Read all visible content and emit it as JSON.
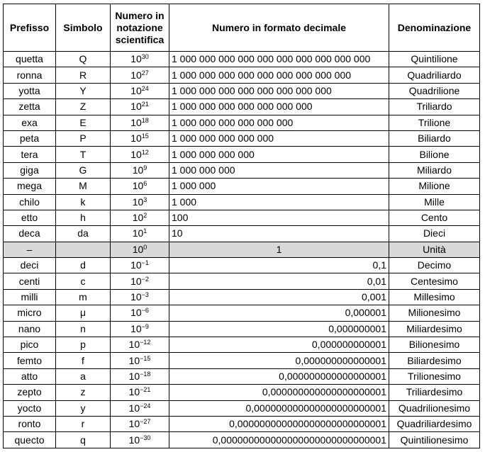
{
  "table": {
    "headers": [
      "Prefisso",
      "Simbolo",
      "Numero in notazione scientifica",
      "Numero in formato decimale",
      "Denominazione"
    ],
    "rows": [
      [
        "quetta",
        "Q",
        "10",
        "30",
        "1 000 000 000 000 000 000 000 000 000 000",
        "Quintilione"
      ],
      [
        "ronna",
        "R",
        "10",
        "27",
        "1 000 000 000 000 000 000 000 000 000",
        "Quadriliardo"
      ],
      [
        "yotta",
        "Y",
        "10",
        "24",
        "1 000 000 000 000 000 000 000 000",
        "Quadrilione"
      ],
      [
        "zetta",
        "Z",
        "10",
        "21",
        "1 000 000 000 000 000 000 000",
        "Triliardo"
      ],
      [
        "exa",
        "E",
        "10",
        "18",
        "1 000 000 000 000 000 000",
        "Trilione"
      ],
      [
        "peta",
        "P",
        "10",
        "15",
        "1 000 000 000 000 000",
        "Biliardo"
      ],
      [
        "tera",
        "T",
        "10",
        "12",
        "1 000 000 000 000",
        "Bilione"
      ],
      [
        "giga",
        "G",
        "10",
        "9",
        "1 000 000 000",
        "Miliardo"
      ],
      [
        "mega",
        "M",
        "10",
        "6",
        "1 000 000",
        "Milione"
      ],
      [
        "chilo",
        "k",
        "10",
        "3",
        "1 000",
        "Mille"
      ],
      [
        "etto",
        "h",
        "10",
        "2",
        "100",
        "Cento"
      ],
      [
        "deca",
        "da",
        "10",
        "1",
        "10",
        "Dieci"
      ],
      [
        "–",
        "",
        "10",
        "0",
        "1",
        "Unità"
      ],
      [
        "deci",
        "d",
        "10",
        "−1",
        "0,1",
        "Decimo"
      ],
      [
        "centi",
        "c",
        "10",
        "−2",
        "0,01",
        "Centesimo"
      ],
      [
        "milli",
        "m",
        "10",
        "−3",
        "0,001",
        "Millesimo"
      ],
      [
        "micro",
        "μ",
        "10",
        "−6",
        "0,000001",
        "Milionesimo"
      ],
      [
        "nano",
        "n",
        "10",
        "−9",
        "0,000000001",
        "Miliardesimo"
      ],
      [
        "pico",
        "p",
        "10",
        "−12",
        "0,000000000001",
        "Bilionesimo"
      ],
      [
        "femto",
        "f",
        "10",
        "−15",
        "0,000000000000001",
        "Biliardesimo"
      ],
      [
        "atto",
        "a",
        "10",
        "−18",
        "0,000000000000000001",
        "Trilionesimo"
      ],
      [
        "zepto",
        "z",
        "10",
        "−21",
        "0,000000000000000000001",
        "Triliardesimo"
      ],
      [
        "yocto",
        "y",
        "10",
        "−24",
        "0,000000000000000000000001",
        "Quadrilionesimo"
      ],
      [
        "ronto",
        "r",
        "10",
        "−27",
        "0,000000000000000000000000001",
        "Quadriliardesimo"
      ],
      [
        "quecto",
        "q",
        "10",
        "−30",
        "0,000000000000000000000000000001",
        "Quintilionesimo"
      ]
    ]
  }
}
